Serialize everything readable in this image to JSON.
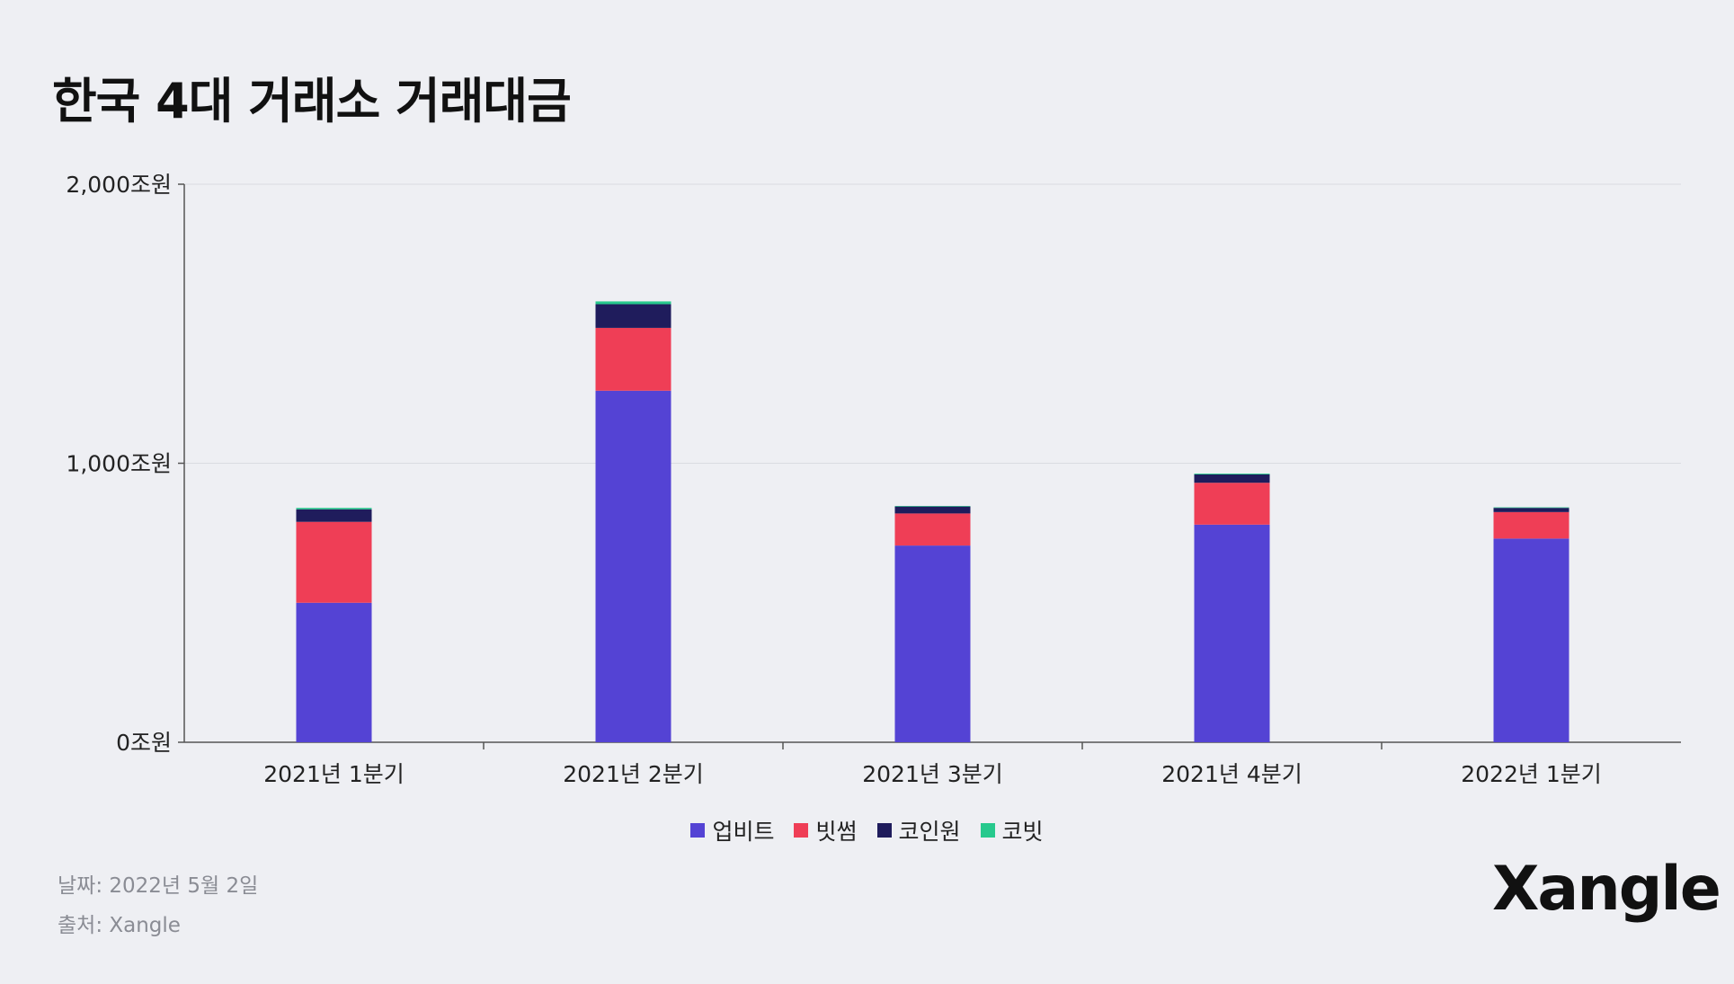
{
  "title": "한국 4대 거래소 거래대금",
  "footer": {
    "date": "날짜: 2022년 5월 2일",
    "source": "출처: Xangle",
    "logo": "Xangle"
  },
  "chart_data": {
    "type": "bar",
    "stacked": true,
    "title": "한국 4대 거래소 거래대금",
    "xlabel": "",
    "ylabel": "",
    "ylim": [
      0,
      2000
    ],
    "yticks": [
      0,
      1000,
      2000
    ],
    "ytick_labels": [
      "0조원",
      "1,000조원",
      "2,000조원"
    ],
    "grid": true,
    "legend_position": "bottom-center",
    "categories": [
      "2021년 1분기",
      "2021년 2분기",
      "2021년 3분기",
      "2021년 4분기",
      "2022년 1분기"
    ],
    "series": [
      {
        "name": "업비트",
        "color": "#5443d4",
        "values": [
          500,
          1260,
          705,
          780,
          730
        ]
      },
      {
        "name": "빗썸",
        "color": "#ef3e56",
        "values": [
          290,
          225,
          115,
          150,
          95
        ]
      },
      {
        "name": "코인원",
        "color": "#1f1c5c",
        "values": [
          45,
          85,
          25,
          30,
          15
        ]
      },
      {
        "name": "코빗",
        "color": "#27c98d",
        "values": [
          5,
          10,
          2,
          3,
          2
        ]
      }
    ]
  }
}
